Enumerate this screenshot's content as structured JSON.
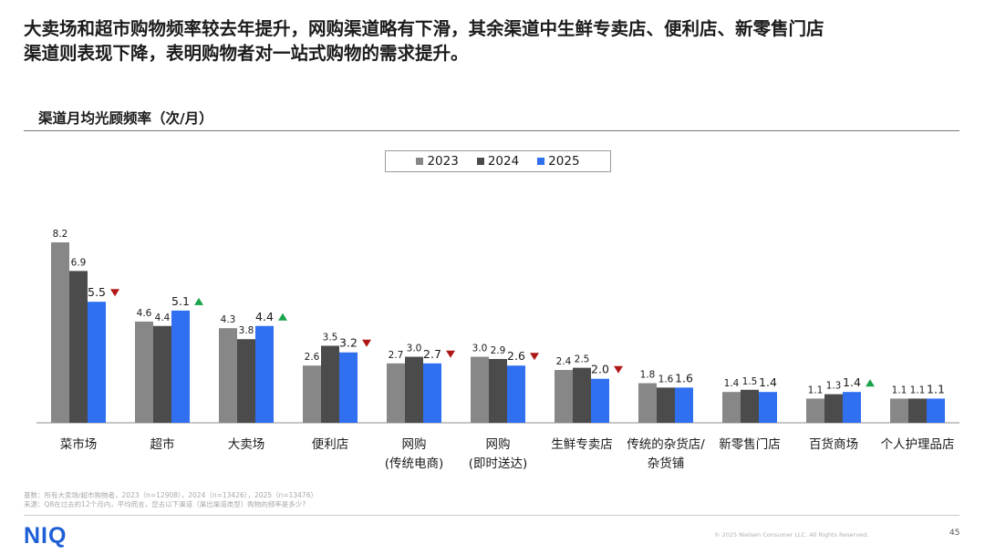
{
  "headline": {
    "line1": "大卖场和超市购物频率较去年提升，网购渠道略有下滑，其余渠道中生鲜专卖店、便利店、新零售门店",
    "line2": "渠道则表现下降，表明购物者对一站式购物的需求提升。"
  },
  "chart_subtitle": "渠道月均光顾频率（次/月）",
  "colors": {
    "2023": "#878787",
    "2024": "#4b4b4b",
    "2025": "#2f6ff0",
    "up": "#1aa34a",
    "down": "#b01818"
  },
  "chart_data": {
    "type": "bar",
    "title": "渠道月均光顾频率（次/月）",
    "ylim": [
      0,
      8.2
    ],
    "legend_position": "top-center",
    "categories": [
      [
        "菜市场"
      ],
      [
        "超市"
      ],
      [
        "大卖场"
      ],
      [
        "便利店"
      ],
      [
        "网购",
        "(传统电商)"
      ],
      [
        "网购",
        "(即时送达)"
      ],
      [
        "生鲜专卖店"
      ],
      [
        "传统的杂货店/",
        "杂货铺"
      ],
      [
        "新零售门店"
      ],
      [
        "百货商场"
      ],
      [
        "个人护理品店"
      ]
    ],
    "series": [
      {
        "name": "2023",
        "values": [
          8.2,
          4.6,
          4.3,
          2.6,
          2.7,
          3.0,
          2.4,
          1.8,
          1.4,
          1.1,
          1.1
        ]
      },
      {
        "name": "2024",
        "values": [
          6.9,
          4.4,
          3.8,
          3.5,
          3.0,
          2.9,
          2.5,
          1.6,
          1.5,
          1.3,
          1.1
        ]
      },
      {
        "name": "2025",
        "values": [
          5.5,
          5.1,
          4.4,
          3.2,
          2.7,
          2.6,
          2.0,
          1.6,
          1.4,
          1.4,
          1.1
        ]
      }
    ],
    "trend_2025": [
      "down",
      "up",
      "up",
      "down",
      "down",
      "down",
      "down",
      "",
      "",
      "up",
      ""
    ]
  },
  "footnote": {
    "base": "基数：所有大卖场/超市购物者，2023（n=12908），2024（n=13426），2025（n=13476）",
    "source": "来源：Q8在过去的12个月内，平均而言，您去以下渠道（渠出渠道类型）购物的频率是多少?"
  },
  "footer": {
    "logo": "NIQ",
    "copyright": "© 2025 Nielsen Consumer LLC. All Rights Reserved.",
    "page_number": "45"
  }
}
